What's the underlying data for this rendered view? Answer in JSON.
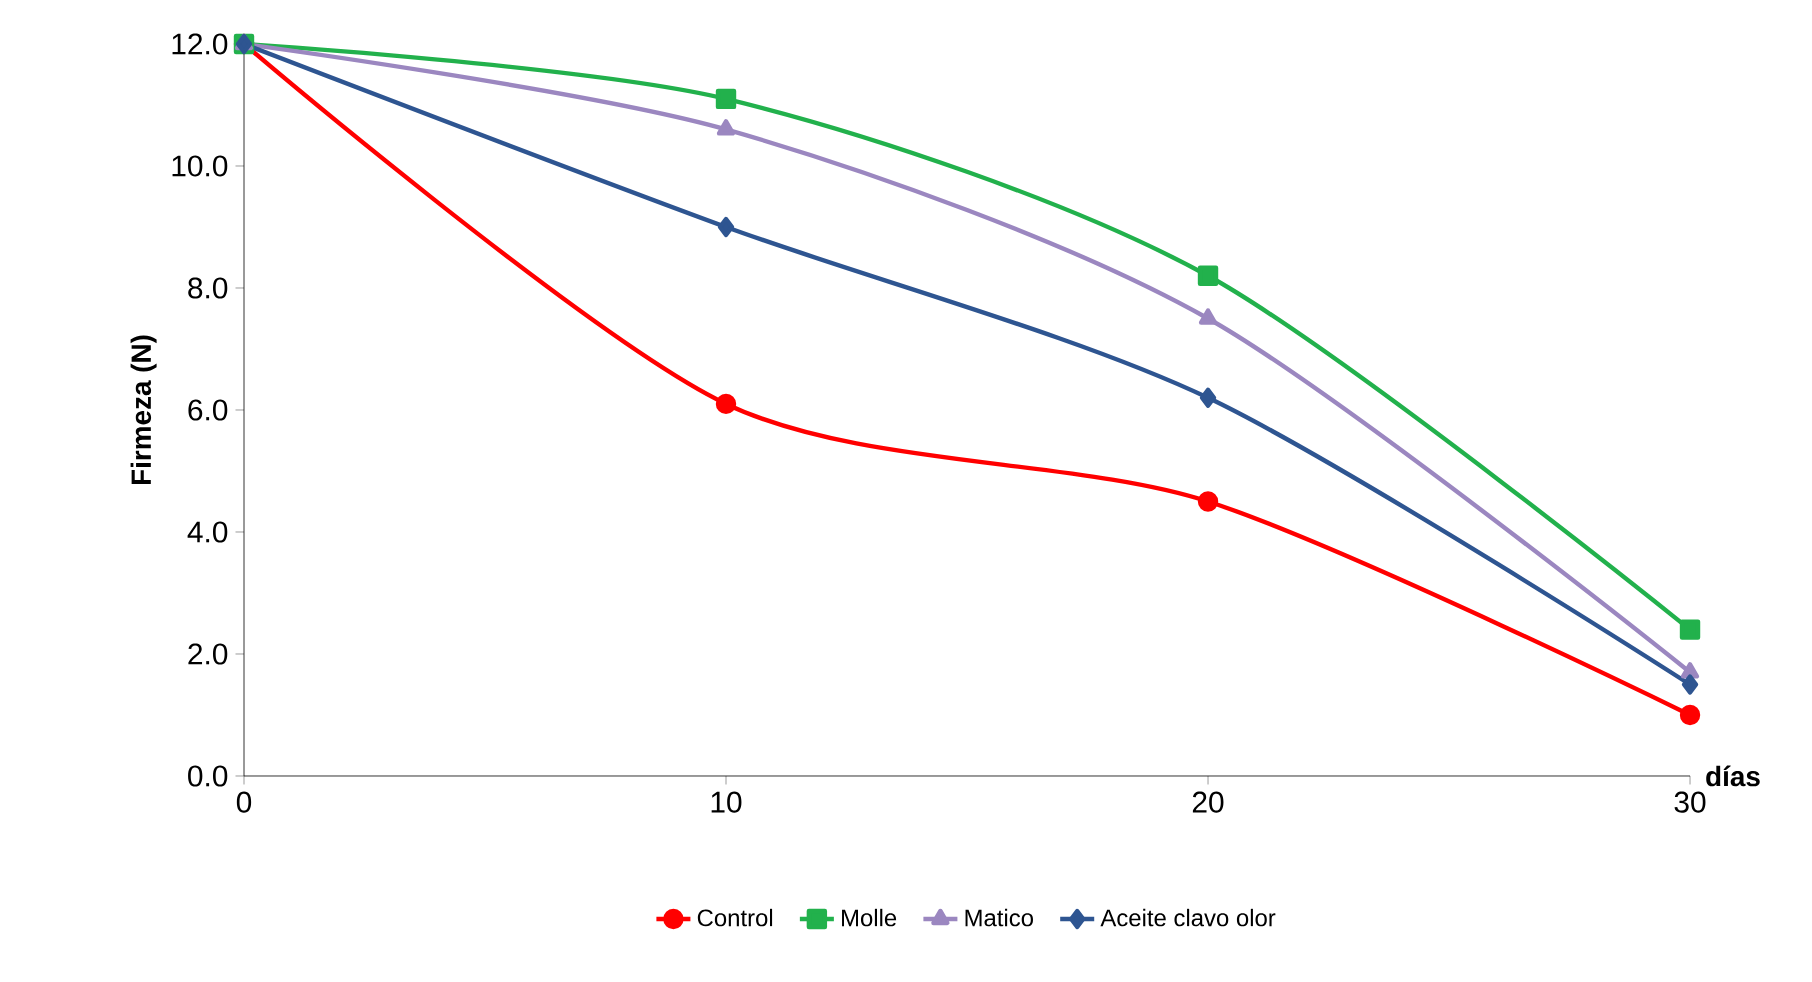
{
  "chart_data": {
    "type": "line",
    "xlabel": "días",
    "ylabel": "Firmeza (N)",
    "x": [
      0,
      10,
      20,
      30
    ],
    "series": [
      {
        "name": "Control",
        "color": "#ff0000",
        "marker": "circle",
        "values": [
          12.0,
          6.1,
          4.5,
          1.0
        ]
      },
      {
        "name": "Molle",
        "color": "#22b14c",
        "marker": "square",
        "values": [
          12.0,
          11.1,
          8.2,
          2.4
        ]
      },
      {
        "name": "Matico",
        "color": "#9b87c0",
        "marker": "triangle",
        "values": [
          12.0,
          10.6,
          7.5,
          1.7
        ]
      },
      {
        "name": "Aceite clavo olor",
        "color": "#2e5591",
        "marker": "diamond",
        "values": [
          12.0,
          9.0,
          6.2,
          1.5
        ]
      }
    ],
    "xlim": [
      0,
      30
    ],
    "xticks": [
      0,
      10,
      20,
      30
    ],
    "ylim": [
      0,
      12
    ],
    "yticks": [
      {
        "value": 0,
        "label": "0.0"
      },
      {
        "value": 2,
        "label": "2.0"
      },
      {
        "value": 4,
        "label": "4.0"
      },
      {
        "value": 6,
        "label": "6.0"
      },
      {
        "value": 8,
        "label": "8.0"
      },
      {
        "value": 10,
        "label": "10.0"
      },
      {
        "value": 12,
        "label": "12.0"
      }
    ],
    "grid": false,
    "legend": "bottom"
  }
}
